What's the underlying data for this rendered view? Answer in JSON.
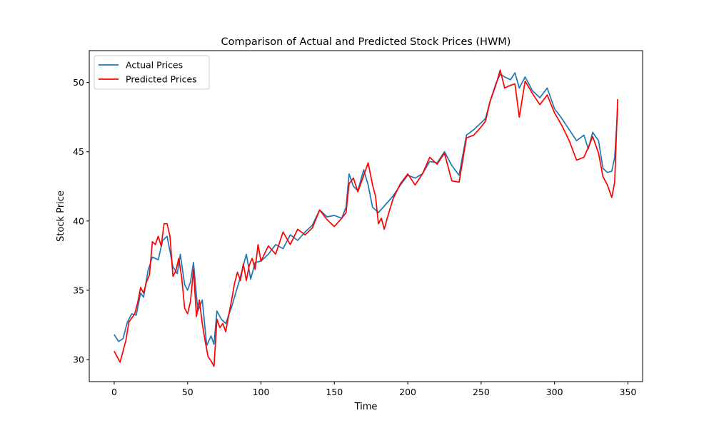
{
  "chart_data": {
    "type": "line",
    "title": "Comparison of Actual and Predicted Stock Prices (HWM)",
    "xlabel": "Time",
    "ylabel": "Stock Price",
    "xlim": [
      -17,
      360
    ],
    "ylim": [
      28.4,
      52.3
    ],
    "xticks": [
      0,
      50,
      100,
      150,
      200,
      250,
      300,
      350
    ],
    "yticks": [
      30,
      35,
      40,
      45,
      50
    ],
    "grid": false,
    "legend_position": "upper-left",
    "series": [
      {
        "name": "Actual Prices",
        "color": "#1f77b4",
        "x": [
          0,
          3,
          6,
          9,
          12,
          15,
          18,
          20,
          23,
          26,
          30,
          33,
          36,
          40,
          43,
          45,
          48,
          50,
          52,
          54,
          57,
          60,
          63,
          66,
          68,
          70,
          73,
          76,
          80,
          85,
          90,
          93,
          96,
          100,
          105,
          110,
          115,
          120,
          125,
          130,
          135,
          140,
          145,
          150,
          155,
          158,
          160,
          163,
          166,
          170,
          173,
          176,
          180,
          185,
          190,
          195,
          200,
          205,
          210,
          215,
          220,
          225,
          230,
          235,
          240,
          245,
          250,
          253,
          256,
          260,
          263,
          266,
          270,
          273,
          276,
          280,
          285,
          290,
          295,
          300,
          305,
          310,
          315,
          320,
          323,
          326,
          330,
          333,
          336,
          339,
          341,
          343
        ],
        "values": [
          31.8,
          31.3,
          31.5,
          32.7,
          33.3,
          33.2,
          34.8,
          34.5,
          36.4,
          37.4,
          37.2,
          38.6,
          38.9,
          36.7,
          36.2,
          37.6,
          35.4,
          35.0,
          35.6,
          37.0,
          33.5,
          34.3,
          31.0,
          31.7,
          31.1,
          33.5,
          32.9,
          32.6,
          33.8,
          35.6,
          37.6,
          35.8,
          37.0,
          37.1,
          37.6,
          38.3,
          38.0,
          39.0,
          38.6,
          39.2,
          39.7,
          40.8,
          40.3,
          40.4,
          40.2,
          41.0,
          43.4,
          42.5,
          42.2,
          43.7,
          42.6,
          41.0,
          40.6,
          41.2,
          41.8,
          42.6,
          43.3,
          43.1,
          43.4,
          44.3,
          44.2,
          45.0,
          44.0,
          43.3,
          46.2,
          46.6,
          47.1,
          47.4,
          48.6,
          49.9,
          50.6,
          50.4,
          50.2,
          50.7,
          49.6,
          50.4,
          49.4,
          48.9,
          49.6,
          48.1,
          47.4,
          46.6,
          45.8,
          46.2,
          45.2,
          46.4,
          45.8,
          43.8,
          43.5,
          43.6,
          44.6,
          48.1
        ]
      },
      {
        "name": "Predicted Prices",
        "color": "#ff0000",
        "x": [
          0,
          2,
          4,
          6,
          8,
          10,
          12,
          14,
          16,
          18,
          20,
          22,
          24,
          26,
          28,
          30,
          32,
          34,
          36,
          38,
          40,
          42,
          44,
          46,
          48,
          50,
          52,
          54,
          56,
          58,
          60,
          62,
          64,
          66,
          68,
          70,
          72,
          74,
          76,
          78,
          80,
          82,
          84,
          86,
          88,
          90,
          92,
          94,
          96,
          98,
          100,
          105,
          110,
          115,
          120,
          125,
          130,
          135,
          140,
          145,
          150,
          155,
          158,
          160,
          163,
          166,
          170,
          173,
          176,
          178,
          180,
          182,
          184,
          186,
          190,
          195,
          200,
          205,
          210,
          215,
          220,
          225,
          230,
          235,
          240,
          245,
          250,
          253,
          256,
          260,
          263,
          266,
          270,
          273,
          276,
          280,
          285,
          290,
          295,
          300,
          305,
          310,
          315,
          320,
          323,
          326,
          330,
          333,
          336,
          339,
          341,
          343
        ],
        "values": [
          30.6,
          30.2,
          29.8,
          30.6,
          31.4,
          32.7,
          33.0,
          33.3,
          34.1,
          35.2,
          34.8,
          35.6,
          36.1,
          38.5,
          38.3,
          38.9,
          38.2,
          39.8,
          39.8,
          38.9,
          36.0,
          36.4,
          37.3,
          35.9,
          33.7,
          33.3,
          34.2,
          36.5,
          33.1,
          34.3,
          32.6,
          31.3,
          30.2,
          29.9,
          29.5,
          32.9,
          32.3,
          32.6,
          32.0,
          33.2,
          34.3,
          35.5,
          36.3,
          35.7,
          36.9,
          35.7,
          36.8,
          37.3,
          36.5,
          38.3,
          37.1,
          38.2,
          37.6,
          39.2,
          38.3,
          39.4,
          39.0,
          39.5,
          40.8,
          40.1,
          39.6,
          40.2,
          40.6,
          42.7,
          43.1,
          42.1,
          43.3,
          44.2,
          42.6,
          41.8,
          39.8,
          40.2,
          39.4,
          40.2,
          41.6,
          42.7,
          43.4,
          42.6,
          43.4,
          44.6,
          44.1,
          44.9,
          42.9,
          42.8,
          46.0,
          46.2,
          46.8,
          47.2,
          48.6,
          49.8,
          50.9,
          49.6,
          49.8,
          49.9,
          47.5,
          50.1,
          49.2,
          48.4,
          49.1,
          47.8,
          46.9,
          45.8,
          44.4,
          44.6,
          45.3,
          46.1,
          44.9,
          43.2,
          42.6,
          41.7,
          42.8,
          48.8
        ]
      }
    ]
  }
}
